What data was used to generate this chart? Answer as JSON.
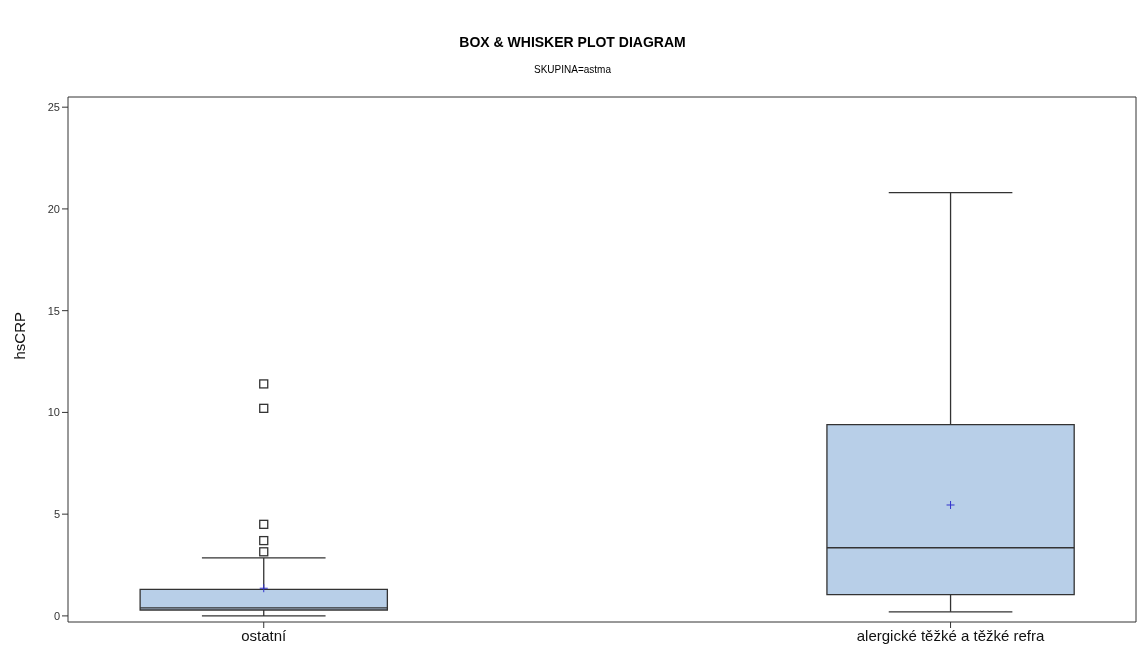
{
  "chart_data": {
    "type": "box",
    "title": "BOX & WHISKER PLOT DIAGRAM",
    "subtitle": "SKUPINA=astma",
    "ylabel": "hsCRP",
    "categories": [
      "ostatní",
      "alergické těžké a těžké refra"
    ],
    "color": "#b8cfe8",
    "boxes": [
      {
        "low": 0,
        "q1": 0.29,
        "median": 0.39,
        "q3": 1.3,
        "high": 2.85,
        "mean": 1.36,
        "outliers": [
          11.4,
          10.2,
          4.5,
          3.7,
          3.15
        ]
      },
      {
        "low": 0.2,
        "q1": 1.05,
        "median": 3.35,
        "q3": 9.4,
        "high": 20.8,
        "mean": 5.45
      }
    ],
    "ylim": [
      -0.3,
      25.5
    ],
    "yticks": [
      0,
      5,
      10,
      15,
      20,
      25
    ],
    "marker": "square"
  }
}
